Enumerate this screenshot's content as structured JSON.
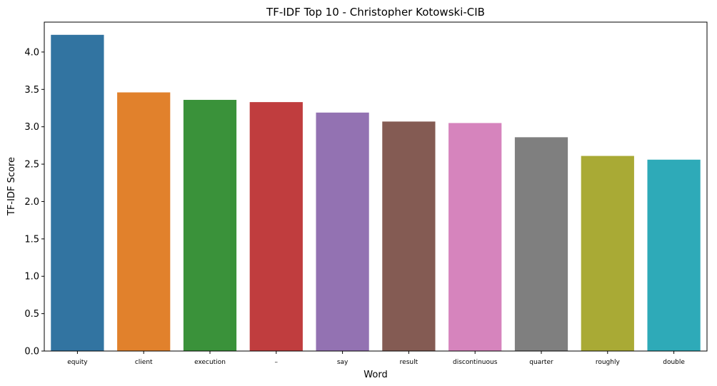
{
  "chart_data": {
    "type": "bar",
    "title": "TF-IDF Top 10 - Christopher Kotowski-CIB",
    "xlabel": "Word",
    "ylabel": "TF-IDF Score",
    "categories": [
      "equity",
      "client",
      "execution",
      "–",
      "say",
      "result",
      "discontinuous",
      "quarter",
      "roughly",
      "double"
    ],
    "values": [
      4.23,
      3.46,
      3.36,
      3.33,
      3.19,
      3.07,
      3.05,
      2.86,
      2.61,
      2.56
    ],
    "colors": [
      "#3274a1",
      "#e1812c",
      "#3a923a",
      "#c03d3e",
      "#9372b2",
      "#845b53",
      "#d684bd",
      "#7f7f7f",
      "#a9aa35",
      "#2eaab8"
    ],
    "ylim": [
      0,
      4.4
    ],
    "yticks": [
      "0.0",
      "0.5",
      "1.0",
      "1.5",
      "2.0",
      "2.5",
      "3.0",
      "3.5",
      "4.0"
    ],
    "grid": false,
    "legend": "none"
  }
}
